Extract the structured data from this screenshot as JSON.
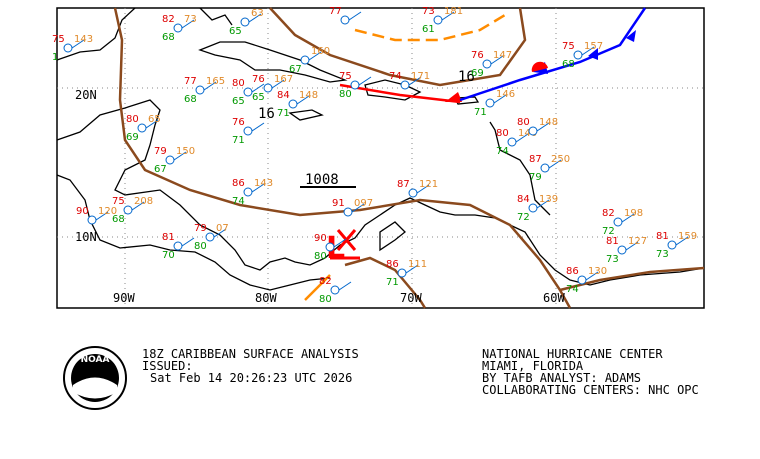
{
  "map": {
    "lat_labels": [
      "20N",
      "10N"
    ],
    "lon_labels": [
      "90W",
      "80W",
      "70W",
      "60W"
    ],
    "isobar_label": "1008",
    "front_labels": [
      "16",
      "16"
    ],
    "low_label": "L",
    "stations": [
      {
        "temp": "82",
        "dew": "68",
        "pressure": "73"
      },
      {
        "temp": "",
        "dew": "65",
        "pressure": "63"
      },
      {
        "temp": "77",
        "dew": "",
        "pressure": ""
      },
      {
        "temp": "73",
        "dew": "61",
        "pressure": "181"
      },
      {
        "temp": "75",
        "dew": "1",
        "pressure": "143"
      },
      {
        "temp": "77",
        "dew": "68",
        "pressure": "165"
      },
      {
        "temp": "80",
        "dew": "65",
        "pressure": ""
      },
      {
        "temp": "76",
        "dew": "65",
        "pressure": "167"
      },
      {
        "temp": "",
        "dew": "67",
        "pressure": "160"
      },
      {
        "temp": "75",
        "dew": "80",
        "pressure": ""
      },
      {
        "temp": "74",
        "dew": "",
        "pressure": "171"
      },
      {
        "temp": "76",
        "dew": "69",
        "pressure": "147"
      },
      {
        "temp": "75",
        "dew": "68",
        "pressure": "157"
      },
      {
        "temp": "",
        "dew": "71",
        "pressure": "146"
      },
      {
        "temp": "80",
        "dew": "74",
        "pressure": "140"
      },
      {
        "temp": "80",
        "dew": "",
        "pressure": "148"
      },
      {
        "temp": "80",
        "dew": "69",
        "pressure": "65"
      },
      {
        "temp": "76",
        "dew": "71",
        "pressure": ""
      },
      {
        "temp": "84",
        "dew": "71",
        "pressure": "148"
      },
      {
        "temp": "79",
        "dew": "67",
        "pressure": "150"
      },
      {
        "temp": "86",
        "dew": "74",
        "pressure": "143"
      },
      {
        "temp": "90",
        "dew": "",
        "pressure": "120"
      },
      {
        "temp": "75",
        "dew": "68",
        "pressure": "208"
      },
      {
        "temp": "79",
        "dew": "80",
        "pressure": "07"
      },
      {
        "temp": "81",
        "dew": "70",
        "pressure": ""
      },
      {
        "temp": "91",
        "dew": "",
        "pressure": "097"
      },
      {
        "temp": "90",
        "dew": "80",
        "pressure": ""
      },
      {
        "temp": "87",
        "dew": "",
        "pressure": "121"
      },
      {
        "temp": "87",
        "dew": "79",
        "pressure": "250"
      },
      {
        "temp": "84",
        "dew": "72",
        "pressure": "139"
      },
      {
        "temp": "82",
        "dew": "72",
        "pressure": "198"
      },
      {
        "temp": "81",
        "dew": "73",
        "pressure": "127"
      },
      {
        "temp": "81",
        "dew": "73",
        "pressure": "159"
      },
      {
        "temp": "86",
        "dew": "74",
        "pressure": "130"
      },
      {
        "temp": "86",
        "dew": "71",
        "pressure": "111"
      },
      {
        "temp": "82",
        "dew": "80",
        "pressure": ""
      }
    ]
  },
  "footer": {
    "logo": "NOAA",
    "title": "18Z CARIBBEAN SURFACE ANALYSIS",
    "issued": "ISSUED:",
    "time": "Sat Feb 14 20:26:23 UTC 2026",
    "center": "NATIONAL HURRICANE CENTER",
    "location": "MIAMI, FLORIDA",
    "analyst": "BY TAFB ANALYST: ADAMS",
    "collab": "COLLABORATING CENTERS: NHC OPC"
  }
}
